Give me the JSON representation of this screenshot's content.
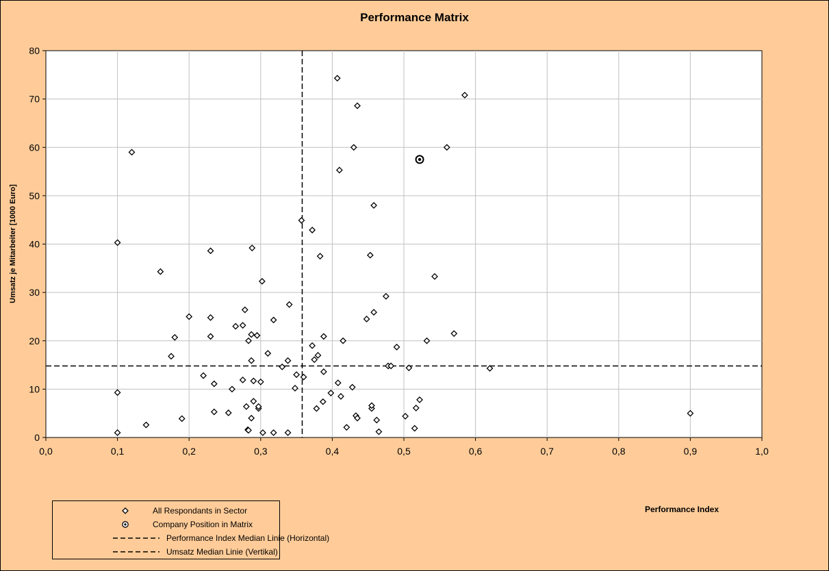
{
  "chart_data": {
    "type": "scatter",
    "title": "Performance Matrix",
    "xlabel": "Performance Index",
    "ylabel": "Umsatz je Mitarbeiter  [1000 Euro]",
    "xlim": [
      0,
      1
    ],
    "ylim": [
      0,
      80
    ],
    "x_ticks": [
      "0,0",
      "0,1",
      "0,2",
      "0,3",
      "0,4",
      "0,5",
      "0,6",
      "0,7",
      "0,8",
      "0,9",
      "1,0"
    ],
    "y_ticks": [
      "0",
      "10",
      "20",
      "30",
      "40",
      "50",
      "60",
      "70",
      "80"
    ],
    "grid": true,
    "legend_position": "bottom-left",
    "colors": {
      "background": "#ffcc99",
      "plot_area": "#ffffff",
      "grid": "#c0c0c0",
      "marker": "#000000"
    },
    "series": [
      {
        "name": "All Respondants in Sector",
        "marker": "diamond",
        "points": [
          [
            0.1,
            1.0
          ],
          [
            0.1,
            9.3
          ],
          [
            0.1,
            40.3
          ],
          [
            0.12,
            59.0
          ],
          [
            0.14,
            2.6
          ],
          [
            0.16,
            34.3
          ],
          [
            0.175,
            16.8
          ],
          [
            0.18,
            20.7
          ],
          [
            0.19,
            3.9
          ],
          [
            0.2,
            25.0
          ],
          [
            0.22,
            12.8
          ],
          [
            0.23,
            20.9
          ],
          [
            0.23,
            24.8
          ],
          [
            0.23,
            38.6
          ],
          [
            0.235,
            5.3
          ],
          [
            0.235,
            11.1
          ],
          [
            0.255,
            5.1
          ],
          [
            0.26,
            10.0
          ],
          [
            0.265,
            23.0
          ],
          [
            0.275,
            11.9
          ],
          [
            0.275,
            23.2
          ],
          [
            0.278,
            26.4
          ],
          [
            0.28,
            6.4
          ],
          [
            0.282,
            1.6
          ],
          [
            0.283,
            1.5
          ],
          [
            0.283,
            20.0
          ],
          [
            0.287,
            4.0
          ],
          [
            0.287,
            15.9
          ],
          [
            0.287,
            21.3
          ],
          [
            0.288,
            39.2
          ],
          [
            0.29,
            7.5
          ],
          [
            0.29,
            11.7
          ],
          [
            0.295,
            21.1
          ],
          [
            0.297,
            6.0
          ],
          [
            0.297,
            6.4
          ],
          [
            0.3,
            11.5
          ],
          [
            0.302,
            32.3
          ],
          [
            0.303,
            1.0
          ],
          [
            0.31,
            17.4
          ],
          [
            0.318,
            1.0
          ],
          [
            0.318,
            24.3
          ],
          [
            0.33,
            14.6
          ],
          [
            0.338,
            1.0
          ],
          [
            0.338,
            15.9
          ],
          [
            0.34,
            27.5
          ],
          [
            0.348,
            10.2
          ],
          [
            0.35,
            13.0
          ],
          [
            0.357,
            44.9
          ],
          [
            0.36,
            12.5
          ],
          [
            0.372,
            42.9
          ],
          [
            0.372,
            19.0
          ],
          [
            0.375,
            16.1
          ],
          [
            0.378,
            6.0
          ],
          [
            0.38,
            17.0
          ],
          [
            0.383,
            37.5
          ],
          [
            0.387,
            7.4
          ],
          [
            0.388,
            13.6
          ],
          [
            0.388,
            20.9
          ],
          [
            0.398,
            9.2
          ],
          [
            0.407,
            74.3
          ],
          [
            0.408,
            11.3
          ],
          [
            0.41,
            55.3
          ],
          [
            0.412,
            8.5
          ],
          [
            0.415,
            20.0
          ],
          [
            0.42,
            2.1
          ],
          [
            0.428,
            10.4
          ],
          [
            0.43,
            60.0
          ],
          [
            0.433,
            4.5
          ],
          [
            0.435,
            4.0
          ],
          [
            0.435,
            68.6
          ],
          [
            0.448,
            24.5
          ],
          [
            0.453,
            37.7
          ],
          [
            0.455,
            6.0
          ],
          [
            0.455,
            6.6
          ],
          [
            0.458,
            25.9
          ],
          [
            0.458,
            48.0
          ],
          [
            0.462,
            3.6
          ],
          [
            0.465,
            1.2
          ],
          [
            0.475,
            29.2
          ],
          [
            0.478,
            14.8
          ],
          [
            0.482,
            14.8
          ],
          [
            0.49,
            18.7
          ],
          [
            0.502,
            4.4
          ],
          [
            0.507,
            14.4
          ],
          [
            0.515,
            1.9
          ],
          [
            0.517,
            6.1
          ],
          [
            0.522,
            7.8
          ],
          [
            0.532,
            20.0
          ],
          [
            0.543,
            33.3
          ],
          [
            0.56,
            60.0
          ],
          [
            0.57,
            21.5
          ],
          [
            0.585,
            70.8
          ],
          [
            0.62,
            14.3
          ],
          [
            0.9,
            5.0
          ]
        ]
      },
      {
        "name": "Company Position in Matrix",
        "marker": "circle-dot",
        "points": [
          [
            0.522,
            57.5
          ]
        ]
      }
    ],
    "reference_lines": [
      {
        "name": "Performance Index Median Linie (Horizontal)",
        "axis": "y",
        "value": 14.8,
        "style": "dashed"
      },
      {
        "name": "Umsatz Median Linie (Vertikal)",
        "axis": "x",
        "value": 0.358,
        "style": "dashed"
      }
    ]
  }
}
